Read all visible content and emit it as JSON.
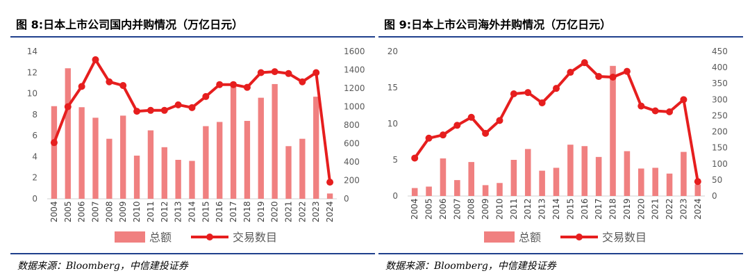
{
  "chart_data": [
    {
      "type": "bar",
      "title": "图 8:日本上市公司国内并购情况（万亿日元）",
      "categories": [
        "2004",
        "2005",
        "2006",
        "2007",
        "2008",
        "2009",
        "2010",
        "2011",
        "2012",
        "2013",
        "2014",
        "2015",
        "2016",
        "2017",
        "2018",
        "2019",
        "2020",
        "2021",
        "2022",
        "2023",
        "2024"
      ],
      "series": [
        {
          "name": "总额",
          "type": "bar",
          "axis": "left",
          "color": "#f08080",
          "values": [
            8.8,
            12.4,
            8.7,
            7.7,
            5.7,
            7.9,
            4.1,
            6.5,
            4.9,
            3.7,
            3.6,
            6.9,
            7.3,
            10.9,
            7.4,
            9.6,
            10.9,
            5.0,
            5.7,
            9.7,
            0.5
          ]
        },
        {
          "name": "交易数目",
          "type": "line",
          "axis": "right",
          "color": "#e61e1e",
          "values": [
            610,
            1000,
            1220,
            1510,
            1270,
            1230,
            950,
            960,
            960,
            1020,
            990,
            1110,
            1240,
            1240,
            1210,
            1370,
            1380,
            1360,
            1270,
            1370,
            180
          ]
        }
      ],
      "yleft": {
        "min": 0,
        "max": 14,
        "step": 2,
        "ticks": [
          "0",
          "2",
          "4",
          "6",
          "8",
          "10",
          "12",
          "14"
        ]
      },
      "yright": {
        "min": 0,
        "max": 1600,
        "step": 200,
        "ticks": [
          "0",
          "200",
          "400",
          "600",
          "800",
          "1000",
          "1200",
          "1400",
          "1600"
        ]
      },
      "legend": [
        "总额",
        "交易数目"
      ],
      "legend_position": "bottom",
      "grid": false
    },
    {
      "type": "bar",
      "title": "图 9:日本上市公司海外并购情况（万亿日元）",
      "categories": [
        "2004",
        "2005",
        "2006",
        "2007",
        "2008",
        "2009",
        "2010",
        "2011",
        "2012",
        "2013",
        "2014",
        "2015",
        "2016",
        "2017",
        "2018",
        "2019",
        "2020",
        "2021",
        "2022",
        "2023",
        "2024"
      ],
      "series": [
        {
          "name": "总额",
          "type": "bar",
          "axis": "left",
          "color": "#f08080",
          "values": [
            1.1,
            1.3,
            5.2,
            2.2,
            4.7,
            1.5,
            1.8,
            5.0,
            6.5,
            3.5,
            3.9,
            7.1,
            6.9,
            5.4,
            18.0,
            6.2,
            3.8,
            3.9,
            3.1,
            6.1,
            1.6
          ]
        },
        {
          "name": "交易数目",
          "type": "line",
          "axis": "right",
          "color": "#e61e1e",
          "values": [
            118,
            180,
            190,
            220,
            245,
            195,
            235,
            318,
            322,
            290,
            335,
            385,
            415,
            372,
            370,
            388,
            280,
            265,
            262,
            300,
            45
          ]
        }
      ],
      "yleft": {
        "min": 0,
        "max": 20,
        "step": 5,
        "ticks": [
          "0",
          "5",
          "10",
          "15",
          "20"
        ]
      },
      "yright": {
        "min": 0,
        "max": 450,
        "step": 50,
        "ticks": [
          "0",
          "50",
          "100",
          "150",
          "200",
          "250",
          "300",
          "350",
          "400",
          "450"
        ]
      },
      "legend": [
        "总额",
        "交易数目"
      ],
      "legend_position": "bottom",
      "grid": false
    }
  ],
  "left": {
    "title": "图 8:日本上市公司国内并购情况（万亿日元）",
    "source": "数据来源：Bloomberg，中信建投证券"
  },
  "right": {
    "title": "图 9:日本上市公司海外并购情况（万亿日元）",
    "source": "数据来源：Bloomberg，中信建投证券"
  }
}
